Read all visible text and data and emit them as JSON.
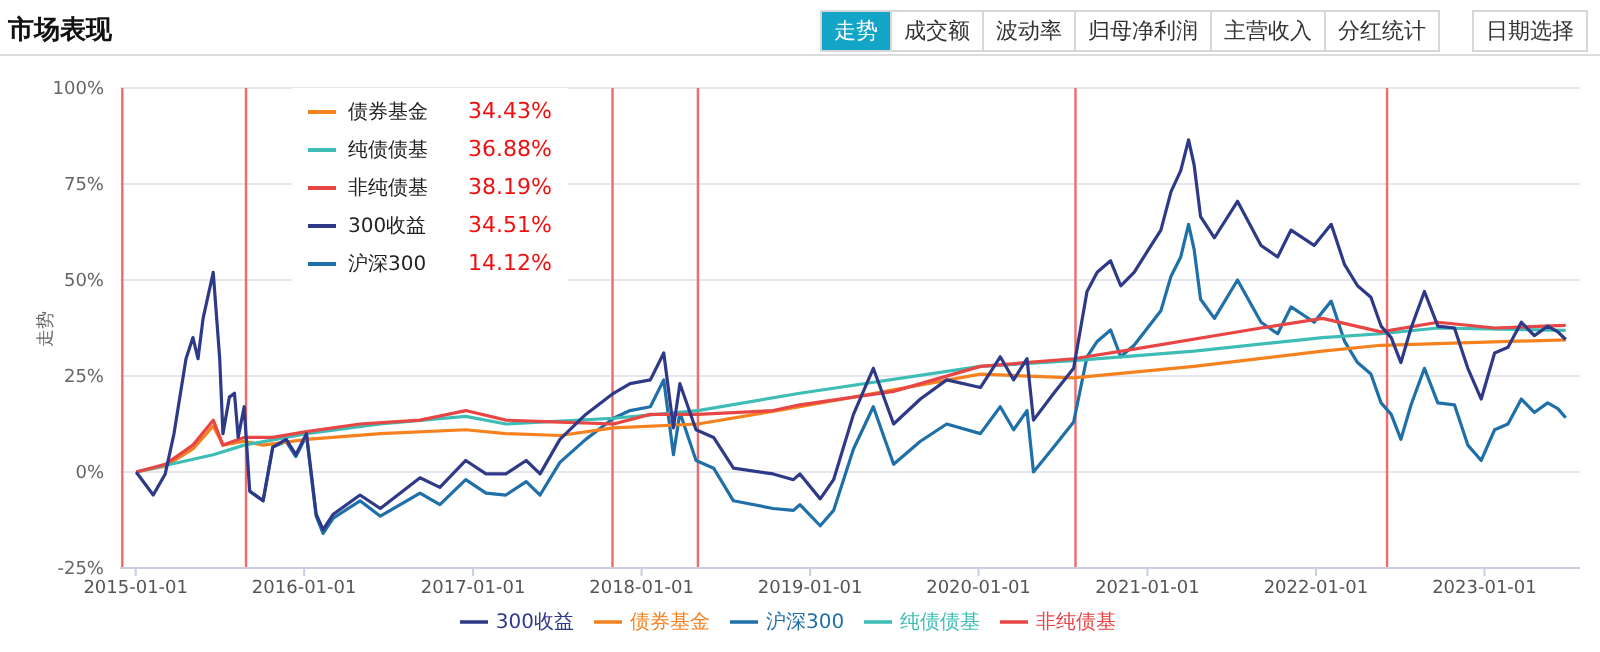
{
  "chart_data": {
    "type": "line",
    "title": "市场表现",
    "ylabel": "走势",
    "legend": "bottom",
    "grid": "y",
    "marker": "none",
    "line_style": "solid",
    "annotations": [
      "34.43%",
      "36.88%",
      "38.19%",
      "34.51%",
      "14.12%",
      "走势",
      "成交额",
      "波动率",
      "归母净利润",
      "主营收入",
      "分红统计",
      "日期选择"
    ],
    "xlim": [
      "2014-11-28",
      "2023-07-27"
    ],
    "xticks": [
      "2015-01-01",
      "2016-01-01",
      "2017-01-01",
      "2018-01-01",
      "2019-01-01",
      "2020-01-01",
      "2021-01-01",
      "2022-01-01",
      "2023-01-01"
    ],
    "ylim": [
      -25,
      100
    ],
    "yticks": [
      {
        "value": -25,
        "label": "-25%"
      },
      {
        "value": 0,
        "label": "0%"
      },
      {
        "value": 25,
        "label": "25%"
      },
      {
        "value": 50,
        "label": "50%"
      },
      {
        "value": 75,
        "label": "75%"
      },
      {
        "value": 100,
        "label": "100%"
      }
    ],
    "ref_lines": [
      {
        "axis": "x",
        "value": "2014-12-03",
        "color": "#ef6b6b"
      },
      {
        "axis": "x",
        "value": "2015-08-28",
        "color": "#ef6b6b"
      },
      {
        "axis": "x",
        "value": "2017-10-30",
        "color": "#ef6b6b"
      },
      {
        "axis": "x",
        "value": "2018-05-03",
        "color": "#ef6b6b"
      },
      {
        "axis": "x",
        "value": "2020-07-29",
        "color": "#ef6b6b"
      },
      {
        "axis": "x",
        "value": "2022-06-04",
        "color": "#ef6b6b"
      }
    ],
    "series": [
      {
        "name": "沪深300",
        "color": "#1f6fa8",
        "x": [
          "2015-09-05",
          "2015-10-04",
          "2015-10-25",
          "2015-11-23",
          "2015-12-14",
          "2016-01-06",
          "2016-01-27",
          "2016-02-11",
          "2016-03-04",
          "2016-05-01",
          "2016-06-14",
          "2016-09-08",
          "2016-10-21",
          "2016-12-16",
          "2017-01-29",
          "2017-03-13",
          "2017-04-26",
          "2017-05-26",
          "2017-07-08",
          "2017-09-02",
          "2017-11-01",
          "2017-12-07",
          "2018-01-20",
          "2018-02-18",
          "2018-03-11",
          "2018-03-25",
          "2018-04-29",
          "2018-06-06",
          "2018-07-19",
          "2018-10-13",
          "2018-11-26",
          "2018-12-10",
          "2019-01-23",
          "2019-02-21",
          "2019-04-05",
          "2019-05-18",
          "2019-07-01",
          "2019-08-28",
          "2019-10-24",
          "2020-01-05",
          "2020-02-17",
          "2020-03-17",
          "2020-04-15",
          "2020-04-29",
          "2020-06-12",
          "2020-07-25",
          "2020-08-23",
          "2020-09-14",
          "2020-10-13",
          "2020-11-04",
          "2020-12-03",
          "2021-01-01",
          "2021-01-30",
          "2021-02-21",
          "2021-03-14",
          "2021-03-31",
          "2021-04-12",
          "2021-04-26",
          "2021-05-26",
          "2021-07-15",
          "2021-09-04",
          "2021-10-10",
          "2021-11-08",
          "2021-12-28",
          "2022-02-03",
          "2022-03-04",
          "2022-04-01",
          "2022-04-30",
          "2022-05-22",
          "2022-06-13",
          "2022-07-04",
          "2022-07-26",
          "2022-08-24",
          "2022-09-22",
          "2022-10-28",
          "2022-11-26",
          "2022-12-25",
          "2023-01-23",
          "2023-02-21",
          "2023-03-22",
          "2023-04-19",
          "2023-05-18",
          "2023-06-09",
          "2023-06-26"
        ],
        "values": [
          -5,
          -7.5,
          6.5,
          8,
          4,
          9.5,
          -11.5,
          -16,
          -12,
          -7.5,
          -11.5,
          -5.5,
          -8.5,
          -2,
          -5.5,
          -6,
          -2.5,
          -6,
          2.5,
          8.5,
          14,
          16,
          17,
          24,
          4.5,
          15.5,
          3,
          1,
          -7.5,
          -9.5,
          -10,
          -8.5,
          -14,
          -10,
          6,
          17,
          2,
          8,
          12.5,
          10,
          17,
          11,
          16,
          0,
          6.5,
          13,
          30,
          34,
          37,
          30,
          33,
          37.5,
          42,
          51,
          56,
          64.5,
          58,
          45,
          40,
          50,
          39,
          36,
          43,
          39,
          44.5,
          34,
          28.5,
          25.5,
          18,
          15,
          8.5,
          17.5,
          27,
          18,
          17.5,
          7,
          3,
          11,
          12.5,
          19,
          15.5,
          18,
          16.5,
          14.12
        ]
      },
      {
        "name": "债券基金",
        "color": "#f5821f",
        "x": [
          "2015-01-02",
          "2015-03-06",
          "2015-05-05",
          "2015-06-18",
          "2015-07-09",
          "2015-08-24",
          "2015-10-04",
          "2016-01-06",
          "2016-06-14",
          "2016-12-16",
          "2017-03-13",
          "2017-07-08",
          "2017-11-01",
          "2018-05-03",
          "2018-12-10",
          "2020-01-05",
          "2020-07-25",
          "2021-04-12",
          "2022-01-15",
          "2022-05-22",
          "2023-06-26"
        ],
        "values": [
          0,
          1.5,
          6,
          12,
          7,
          8,
          7,
          8.5,
          10,
          11,
          10,
          9.5,
          11.5,
          12.5,
          17,
          25.5,
          24.5,
          27.5,
          31.5,
          33,
          34.43
        ]
      },
      {
        "name": "纯债债基",
        "color": "#3dbdb5",
        "x": [
          "2015-01-02",
          "2015-06-18",
          "2015-08-24",
          "2016-01-06",
          "2016-06-14",
          "2016-12-16",
          "2017-03-13",
          "2017-11-01",
          "2018-05-03",
          "2018-12-10",
          "2020-01-05",
          "2020-07-25",
          "2021-04-12",
          "2022-01-15",
          "2022-05-22",
          "2022-09-22",
          "2023-06-26"
        ],
        "values": [
          0,
          4.5,
          7,
          10,
          12.5,
          14.5,
          12.5,
          14,
          16,
          20.5,
          27.5,
          29,
          31.5,
          35,
          36,
          37.5,
          36.88
        ]
      },
      {
        "name": "非纯债基",
        "color": "#e84545",
        "x": [
          "2015-01-02",
          "2015-03-06",
          "2015-05-05",
          "2015-06-18",
          "2015-07-09",
          "2015-08-24",
          "2015-10-25",
          "2016-01-06",
          "2016-05-01",
          "2016-09-08",
          "2016-12-16",
          "2017-03-13",
          "2017-07-08",
          "2017-11-01",
          "2018-01-20",
          "2018-05-03",
          "2018-10-13",
          "2018-12-10",
          "2019-07-01",
          "2020-01-05",
          "2020-07-25",
          "2020-12-03",
          "2021-09-04",
          "2022-01-15",
          "2022-05-22",
          "2022-09-22",
          "2023-01-23",
          "2023-06-26"
        ],
        "values": [
          0,
          2,
          7,
          13.5,
          7,
          9,
          9,
          10.5,
          12.5,
          13.5,
          16,
          13.5,
          13,
          12.5,
          15,
          15,
          16,
          17.5,
          21,
          27.5,
          29.5,
          32,
          37.5,
          40,
          36.5,
          39,
          37.5,
          38.19
        ]
      },
      {
        "name": "300收益",
        "color": "#2e3a87",
        "x": [
          "2015-01-02",
          "2015-02-08",
          "2015-03-06",
          "2015-03-25",
          "2015-04-20",
          "2015-05-05",
          "2015-05-16",
          "2015-05-27",
          "2015-06-18",
          "2015-07-02",
          "2015-07-09",
          "2015-07-23",
          "2015-08-03",
          "2015-08-11",
          "2015-08-24",
          "2015-09-05",
          "2015-10-04",
          "2015-10-25",
          "2015-11-23",
          "2015-12-14",
          "2016-01-06",
          "2016-01-27",
          "2016-02-11",
          "2016-03-04",
          "2016-05-01",
          "2016-06-14",
          "2016-09-08",
          "2016-10-21",
          "2016-12-16",
          "2017-01-29",
          "2017-03-13",
          "2017-04-26",
          "2017-05-26",
          "2017-07-08",
          "2017-09-02",
          "2017-11-01",
          "2017-12-07",
          "2018-01-20",
          "2018-02-18",
          "2018-03-11",
          "2018-03-25",
          "2018-04-29",
          "2018-06-06",
          "2018-07-19",
          "2018-10-13",
          "2018-11-26",
          "2018-12-10",
          "2019-01-23",
          "2019-02-21",
          "2019-04-05",
          "2019-05-18",
          "2019-07-01",
          "2019-08-28",
          "2019-10-24",
          "2020-01-05",
          "2020-02-17",
          "2020-03-17",
          "2020-04-15",
          "2020-04-29",
          "2020-06-12",
          "2020-07-25",
          "2020-08-23",
          "2020-09-14",
          "2020-10-13",
          "2020-11-04",
          "2020-12-03",
          "2021-01-01",
          "2021-01-30",
          "2021-02-21",
          "2021-03-14",
          "2021-03-31",
          "2021-04-12",
          "2021-04-26",
          "2021-05-26",
          "2021-07-15",
          "2021-09-04",
          "2021-10-10",
          "2021-11-08",
          "2021-12-28",
          "2022-02-03",
          "2022-03-04",
          "2022-04-01",
          "2022-04-30",
          "2022-05-22",
          "2022-06-13",
          "2022-07-04",
          "2022-07-26",
          "2022-08-24",
          "2022-09-22",
          "2022-10-28",
          "2022-11-26",
          "2022-12-25",
          "2023-01-23",
          "2023-02-21",
          "2023-03-22",
          "2023-04-19",
          "2023-05-18",
          "2023-06-09",
          "2023-06-26"
        ],
        "values": [
          0,
          -6,
          -0.5,
          10,
          29.5,
          35,
          29.5,
          40,
          52,
          29.5,
          10,
          19.5,
          20.5,
          9,
          17,
          -5,
          -7.5,
          6.5,
          8.5,
          4.5,
          10,
          -11,
          -15,
          -11,
          -6,
          -9.5,
          -1.5,
          -4,
          3,
          -0.5,
          -0.5,
          3,
          -0.5,
          8.5,
          15,
          20.5,
          23,
          24,
          31,
          11.5,
          23,
          11,
          9,
          1,
          -0.5,
          -2,
          -0.5,
          -7,
          -2,
          15,
          27,
          12.5,
          19,
          24,
          22,
          30,
          24,
          29.5,
          13.5,
          20.5,
          27,
          47,
          52,
          55,
          48.5,
          52,
          57.5,
          63,
          73,
          78.5,
          86.5,
          80,
          66.5,
          61,
          70.5,
          59,
          56,
          63,
          59,
          64.5,
          54,
          48.5,
          45.5,
          38,
          35,
          28.5,
          37.5,
          47,
          38,
          37.5,
          27,
          19,
          31,
          32.5,
          39,
          35.5,
          38,
          36.5,
          34.51
        ]
      }
    ]
  }
}
